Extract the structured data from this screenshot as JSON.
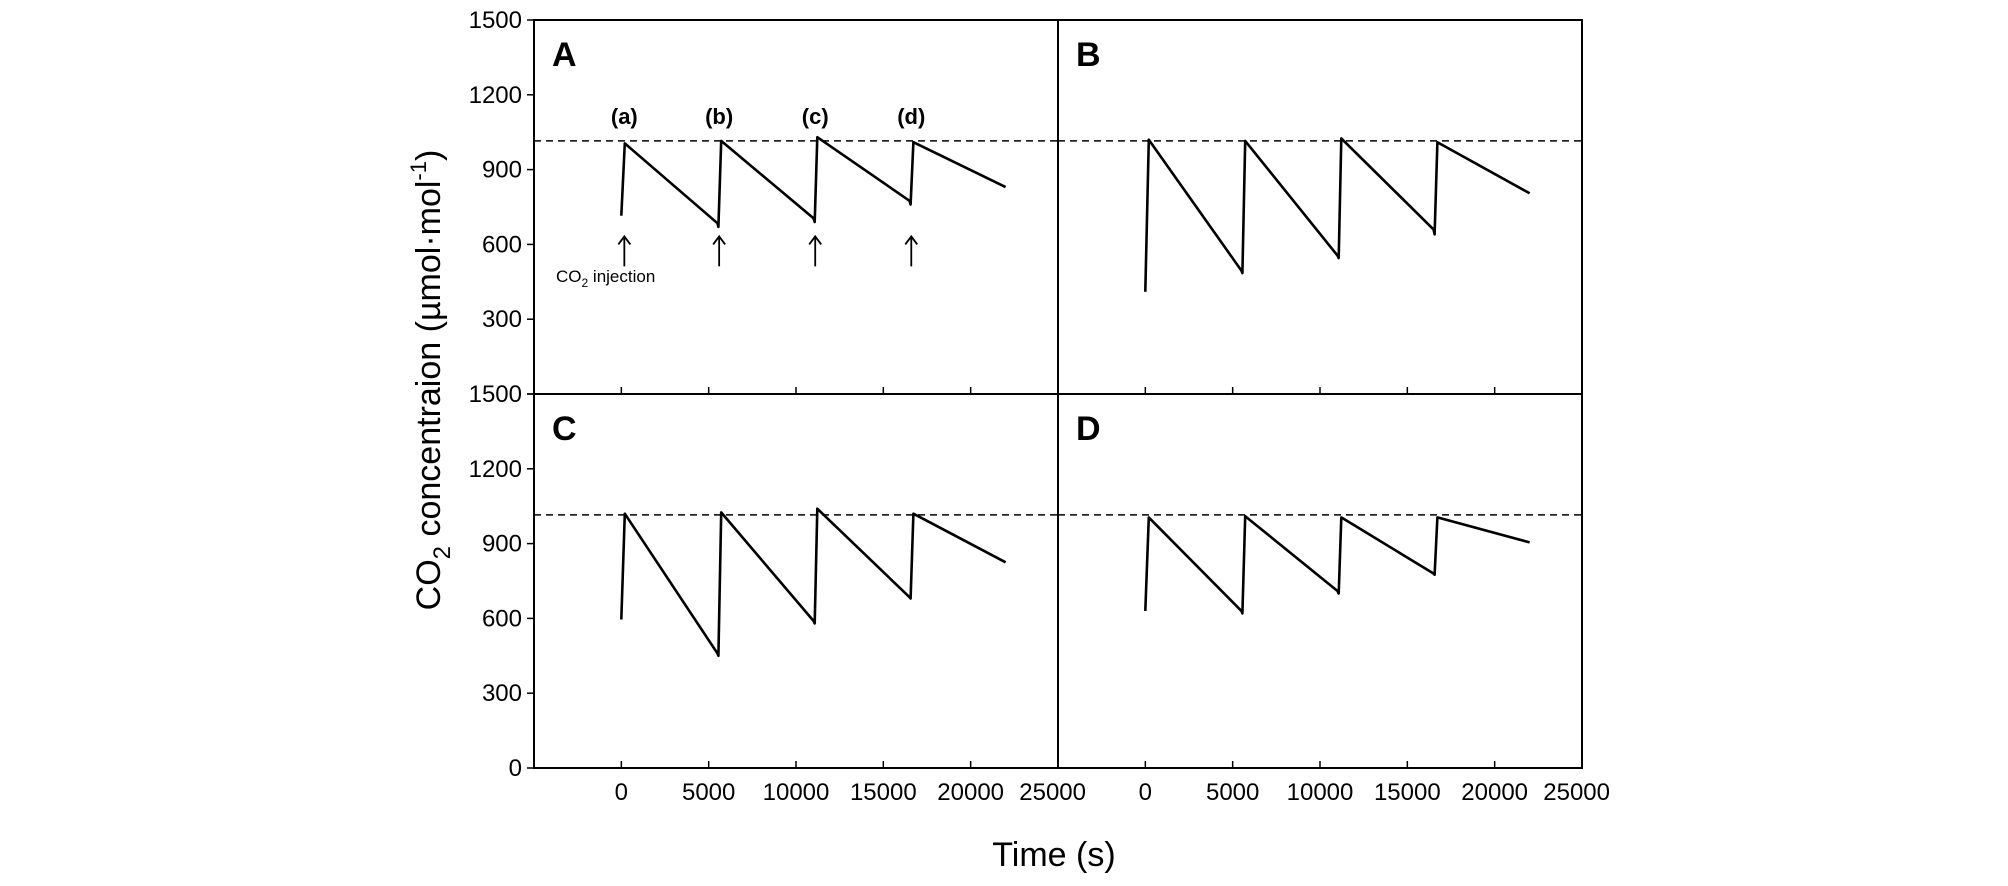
{
  "chart_data": {
    "type": "line",
    "layout": "2x2 panels",
    "xlabel": "Time (s)",
    "ylabel_main": "CO",
    "ylabel_sub": "2",
    "ylabel_rest": " concentraion (µmol·mol",
    "ylabel_sup": "-1",
    "ylabel_close": ")",
    "xlim": [
      -5000,
      25000
    ],
    "ylim": [
      0,
      1500
    ],
    "xticks": [
      0,
      5000,
      10000,
      15000,
      20000,
      25000
    ],
    "xtick_labels": [
      "0",
      "5000",
      "10000",
      "15000",
      "20000",
      "25000"
    ],
    "xtick_labels_left": [
      "0",
      "5000",
      "10000",
      "15000",
      "20000",
      "25000"
    ],
    "xtick_labels_right": [
      "0",
      "5000",
      "10000",
      "15000",
      "20000",
      "25000"
    ],
    "yticks": [
      0,
      300,
      600,
      900,
      1200,
      1500
    ],
    "ytick_labels_top": [
      "",
      "300",
      "600",
      "900",
      "1200",
      "1500"
    ],
    "ytick_labels_bottom": [
      "0",
      "300",
      "600",
      "900",
      "1200",
      "1500"
    ],
    "reference_line": 1015,
    "injection_labels": [
      "(a)",
      "(b)",
      "(c)",
      "(d)"
    ],
    "injection_times": [
      0,
      5600,
      11100,
      16600
    ],
    "co2_note_main": "CO",
    "co2_note_sub": "2",
    "co2_note_rest": " injection",
    "panels": [
      {
        "id": "A",
        "series": {
          "x": [
            0,
            200,
            5500,
            5560,
            5720,
            11000,
            11070,
            11220,
            16500,
            16560,
            16720,
            22000
          ],
          "y": [
            715,
            1005,
            685,
            670,
            1015,
            705,
            690,
            1030,
            775,
            760,
            1010,
            830
          ]
        }
      },
      {
        "id": "B",
        "series": {
          "x": [
            0,
            200,
            5500,
            5560,
            5720,
            11000,
            11070,
            11220,
            16500,
            16560,
            16720,
            22000
          ],
          "y": [
            410,
            1020,
            495,
            485,
            1015,
            555,
            545,
            1025,
            660,
            640,
            1010,
            805
          ]
        }
      },
      {
        "id": "C",
        "series": {
          "x": [
            0,
            200,
            5500,
            5560,
            5720,
            11000,
            11070,
            11220,
            16500,
            16560,
            16720,
            22000
          ],
          "y": [
            595,
            1020,
            460,
            450,
            1025,
            590,
            580,
            1040,
            685,
            680,
            1020,
            825
          ]
        }
      },
      {
        "id": "D",
        "series": {
          "x": [
            0,
            200,
            5500,
            5560,
            5720,
            11000,
            11070,
            11220,
            16500,
            16560,
            16720,
            22000
          ],
          "y": [
            630,
            1005,
            630,
            620,
            1010,
            710,
            700,
            1005,
            780,
            775,
            1005,
            905
          ]
        }
      }
    ]
  }
}
